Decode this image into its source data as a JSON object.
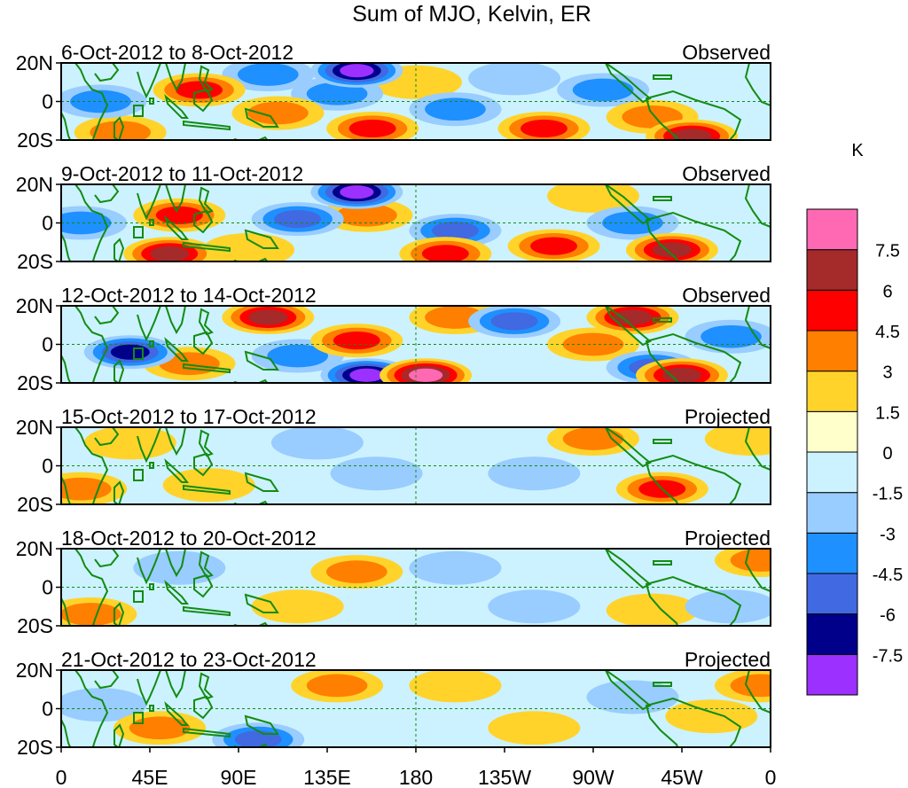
{
  "title": "Sum of MJO, Kelvin, ER",
  "panels": [
    {
      "date_range": "6-Oct-2012 to 8-Oct-2012",
      "status": "Observed"
    },
    {
      "date_range": "9-Oct-2012 to 11-Oct-2012",
      "status": "Observed"
    },
    {
      "date_range": "12-Oct-2012 to 14-Oct-2012",
      "status": "Observed"
    },
    {
      "date_range": "15-Oct-2012 to 17-Oct-2012",
      "status": "Projected"
    },
    {
      "date_range": "18-Oct-2012 to 20-Oct-2012",
      "status": "Projected"
    },
    {
      "date_range": "21-Oct-2012 to 23-Oct-2012",
      "status": "Projected"
    }
  ],
  "lat_labels": [
    "20N",
    "0",
    "20S"
  ],
  "lon_labels": [
    "0",
    "45E",
    "90E",
    "135E",
    "180",
    "135W",
    "90W",
    "45W",
    "0"
  ],
  "colorbar": {
    "unit": "K",
    "bin_colors": [
      "#9b30ff",
      "#00008b",
      "#4169e1",
      "#1e90ff",
      "#99ccff",
      "#ccf2ff",
      "#ffffcc",
      "#ffd32a",
      "#ff7f00",
      "#ff0000",
      "#a52a2a",
      "#ff69b4"
    ],
    "ticks": [
      "-7.5",
      "-6",
      "-4.5",
      "-3",
      "-1.5",
      "0",
      "1.5",
      "3",
      "4.5",
      "6",
      "7.5"
    ]
  },
  "anomaly_blobs": [
    [
      {
        "lon": 70,
        "lat": 6,
        "value": 4.5
      },
      {
        "lon": 30,
        "lat": -16,
        "value": 3
      },
      {
        "lon": 150,
        "lat": 16,
        "value": -7.5
      },
      {
        "lon": 140,
        "lat": 4,
        "value": -3
      },
      {
        "lon": 158,
        "lat": -14,
        "value": 4.5
      },
      {
        "lon": 110,
        "lat": -6,
        "value": 3
      },
      {
        "lon": 105,
        "lat": 14,
        "value": -3
      },
      {
        "lon": 200,
        "lat": -4,
        "value": -3
      },
      {
        "lon": 245,
        "lat": -14,
        "value": 4.5
      },
      {
        "lon": 275,
        "lat": 6,
        "value": -3
      },
      {
        "lon": 320,
        "lat": -18,
        "value": 6
      },
      {
        "lon": 300,
        "lat": -8,
        "value": 3
      },
      {
        "lon": 230,
        "lat": 12,
        "value": -1.5
      },
      {
        "lon": 20,
        "lat": 0,
        "value": -3
      },
      {
        "lon": 180,
        "lat": 10,
        "value": 1.5
      }
    ],
    [
      {
        "lon": 60,
        "lat": 4,
        "value": 4.5
      },
      {
        "lon": 55,
        "lat": -16,
        "value": 6
      },
      {
        "lon": 150,
        "lat": 16,
        "value": -7.5
      },
      {
        "lon": 120,
        "lat": 2,
        "value": -4.5
      },
      {
        "lon": 155,
        "lat": 4,
        "value": 3
      },
      {
        "lon": 200,
        "lat": -4,
        "value": -4.5
      },
      {
        "lon": 195,
        "lat": -16,
        "value": 4.5
      },
      {
        "lon": 250,
        "lat": -12,
        "value": 4.5
      },
      {
        "lon": 290,
        "lat": 0,
        "value": -3
      },
      {
        "lon": 310,
        "lat": -14,
        "value": 6
      },
      {
        "lon": 10,
        "lat": 0,
        "value": -3
      },
      {
        "lon": 95,
        "lat": -14,
        "value": 1.5
      },
      {
        "lon": 270,
        "lat": 14,
        "value": 1.5
      }
    ],
    [
      {
        "lon": 105,
        "lat": 14,
        "value": 6
      },
      {
        "lon": 35,
        "lat": -4,
        "value": -6
      },
      {
        "lon": 150,
        "lat": 2,
        "value": 4.5
      },
      {
        "lon": 155,
        "lat": -16,
        "value": -7.5
      },
      {
        "lon": 185,
        "lat": -16,
        "value": 7.5
      },
      {
        "lon": 230,
        "lat": 12,
        "value": -4.5
      },
      {
        "lon": 270,
        "lat": 0,
        "value": 3
      },
      {
        "lon": 290,
        "lat": 14,
        "value": 6
      },
      {
        "lon": 300,
        "lat": -12,
        "value": -4.5
      },
      {
        "lon": 315,
        "lat": -16,
        "value": 6
      },
      {
        "lon": 65,
        "lat": -10,
        "value": 3
      },
      {
        "lon": 120,
        "lat": -6,
        "value": -3
      },
      {
        "lon": 200,
        "lat": 14,
        "value": 3
      },
      {
        "lon": 340,
        "lat": 4,
        "value": -3
      }
    ],
    [
      {
        "lon": 10,
        "lat": -12,
        "value": 3
      },
      {
        "lon": 35,
        "lat": 12,
        "value": 1.5
      },
      {
        "lon": 130,
        "lat": 12,
        "value": -1.5
      },
      {
        "lon": 160,
        "lat": -4,
        "value": -1.5
      },
      {
        "lon": 270,
        "lat": 14,
        "value": 3
      },
      {
        "lon": 305,
        "lat": -12,
        "value": 4.5
      },
      {
        "lon": 240,
        "lat": -4,
        "value": -1.5
      },
      {
        "lon": 75,
        "lat": -10,
        "value": 1.5
      },
      {
        "lon": 350,
        "lat": 14,
        "value": 1.5
      }
    ],
    [
      {
        "lon": 15,
        "lat": -14,
        "value": 3
      },
      {
        "lon": 150,
        "lat": 8,
        "value": 3
      },
      {
        "lon": 200,
        "lat": 10,
        "value": -1.5
      },
      {
        "lon": 240,
        "lat": -10,
        "value": -1.5
      },
      {
        "lon": 120,
        "lat": -10,
        "value": 1.5
      },
      {
        "lon": 60,
        "lat": 10,
        "value": -1.5
      },
      {
        "lon": 300,
        "lat": -12,
        "value": 1.5
      },
      {
        "lon": 355,
        "lat": 14,
        "value": 3
      },
      {
        "lon": 340,
        "lat": -10,
        "value": -1.5
      }
    ],
    [
      {
        "lon": 140,
        "lat": 12,
        "value": 3
      },
      {
        "lon": 100,
        "lat": -16,
        "value": -4.5
      },
      {
        "lon": 50,
        "lat": -10,
        "value": 3
      },
      {
        "lon": 20,
        "lat": 2,
        "value": -1.5
      },
      {
        "lon": 200,
        "lat": 12,
        "value": 1.5
      },
      {
        "lon": 240,
        "lat": -10,
        "value": 1.5
      },
      {
        "lon": 290,
        "lat": 6,
        "value": -1.5
      },
      {
        "lon": 330,
        "lat": -4,
        "value": 1.5
      },
      {
        "lon": 355,
        "lat": 12,
        "value": 3
      }
    ]
  ]
}
